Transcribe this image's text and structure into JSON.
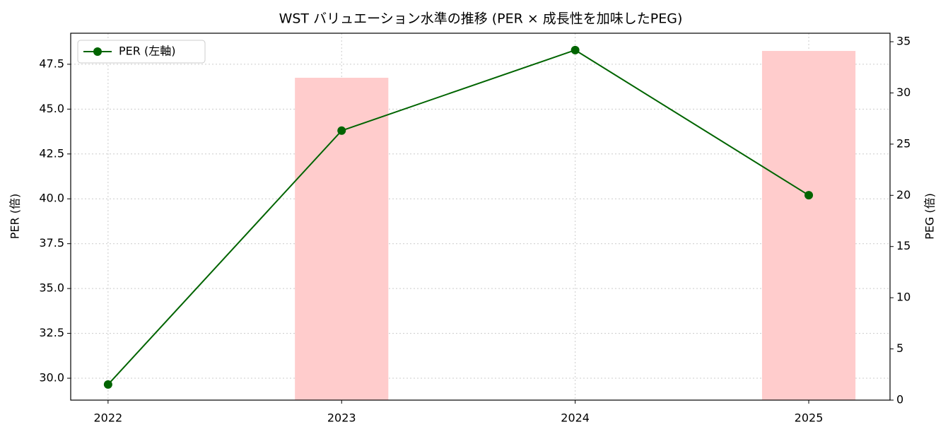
{
  "chart_data": {
    "type": "line_bar",
    "title": "WST バリュエーション水準の推移 (PER × 成長性を加味したPEG)",
    "categories": [
      "2022",
      "2023",
      "2024",
      "2025"
    ],
    "series": [
      {
        "name": "PER (左軸)",
        "type": "line",
        "color": "#006400",
        "values": [
          29.65,
          43.8,
          48.29,
          40.2
        ]
      },
      {
        "type": "bar",
        "axis": "y2",
        "color": "#ffcccc",
        "values": [
          null,
          31.48,
          null,
          34.1
        ]
      }
    ],
    "ylabel": "PER (倍)",
    "y2label": "PEG (倍)",
    "ylim": [
      28.78,
      49.23
    ],
    "yticks": [
      {
        "value": 30,
        "label": "30.0"
      },
      32.5,
      {
        "value": 35,
        "label": "35.0"
      },
      37.5,
      {
        "value": 40,
        "label": "40.0"
      },
      42.5,
      {
        "value": 45,
        "label": "45.0"
      },
      47.5
    ],
    "y2lim": [
      0,
      35.83
    ],
    "y2ticks": [
      0,
      5,
      10,
      15,
      20,
      25,
      30,
      35
    ],
    "grid": true,
    "legend": "upper left"
  }
}
